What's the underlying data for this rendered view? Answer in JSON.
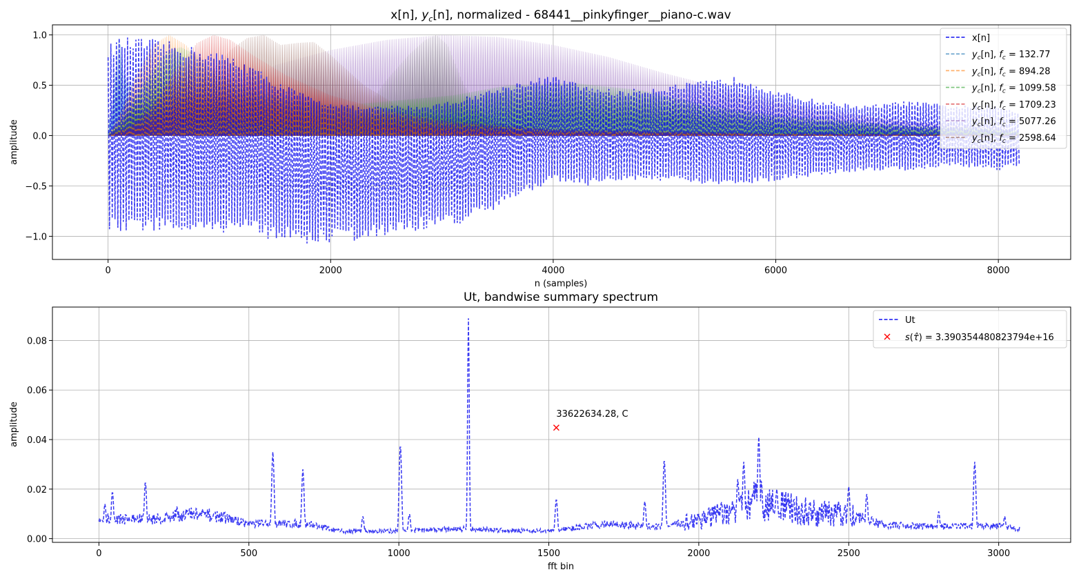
{
  "chart_data": [
    {
      "type": "line",
      "title_parts": [
        "x[n], ",
        "y",
        "c",
        "[n], normalized - 68441__pinkyfinger__piano-c.wav"
      ],
      "xlabel": "n (samples)",
      "ylabel": "amplitude",
      "xlim": [
        -500,
        8650
      ],
      "ylim": [
        -1.23,
        1.1
      ],
      "xticks": [
        0,
        2000,
        4000,
        6000,
        8000
      ],
      "xtick_labels": [
        "0",
        "2000",
        "4000",
        "6000",
        "8000"
      ],
      "yticks": [
        -1.0,
        -0.5,
        0.0,
        0.5,
        1.0
      ],
      "ytick_labels": [
        "−1.0",
        "−0.5",
        "0.0",
        "0.5",
        "1.0"
      ],
      "grid": true,
      "legend_position": "top-right",
      "n_samples": 8192,
      "series": [
        {
          "name": "x[n]",
          "kind": "signal",
          "color": "#0000ee",
          "style": "dashed",
          "envelope_n": [
            0,
            100,
            300,
            500,
            700,
            900,
            1100,
            1300,
            1500,
            1700,
            1900,
            2100,
            2300,
            2500,
            2800,
            3100,
            3400,
            3700,
            4000,
            4300,
            4600,
            5000,
            5400,
            5700,
            6000,
            6400,
            6800,
            7200,
            7600,
            8000,
            8190
          ],
          "envelope_upper": [
            0.9,
            0.98,
            0.97,
            0.95,
            0.9,
            0.85,
            0.8,
            0.7,
            0.55,
            0.45,
            0.35,
            0.32,
            0.28,
            0.3,
            0.3,
            0.35,
            0.45,
            0.55,
            0.6,
            0.5,
            0.45,
            0.5,
            0.55,
            0.6,
            0.45,
            0.35,
            0.3,
            0.35,
            0.3,
            0.3,
            0.25
          ],
          "envelope_lower": [
            -0.95,
            -0.98,
            -0.95,
            -0.95,
            -0.98,
            -1.0,
            -0.95,
            -0.98,
            -1.05,
            -1.07,
            -1.1,
            -1.05,
            -1.07,
            -1.0,
            -0.95,
            -0.9,
            -0.8,
            -0.6,
            -0.45,
            -0.5,
            -0.45,
            -0.45,
            -0.5,
            -0.5,
            -0.45,
            -0.4,
            -0.35,
            -0.35,
            -0.3,
            -0.35,
            -0.3
          ]
        },
        {
          "name_parts": [
            "y",
            "c",
            "[n], ",
            "f",
            "c",
            " = 132.77"
          ],
          "kind": "band",
          "color": "#1f77b4",
          "envelope_n": [
            0,
            50,
            100,
            150,
            300,
            600,
            1000,
            1500,
            2000,
            3000,
            4000,
            6000,
            8190
          ],
          "envelope": [
            0.05,
            0.5,
            1.0,
            0.6,
            0.35,
            0.25,
            0.2,
            0.15,
            0.12,
            0.1,
            0.07,
            0.04,
            0.02
          ]
        },
        {
          "name_parts": [
            "y",
            "c",
            "[n], ",
            "f",
            "c",
            " = 894.28"
          ],
          "kind": "band",
          "color": "#ff7f0e",
          "envelope_n": [
            0,
            100,
            250,
            400,
            550,
            700,
            900,
            1200,
            1500,
            2000,
            2500,
            3000,
            4000,
            6000,
            8190
          ],
          "envelope": [
            0.0,
            0.2,
            0.6,
            0.9,
            1.0,
            0.9,
            0.65,
            0.45,
            0.3,
            0.15,
            0.08,
            0.05,
            0.03,
            0.02,
            0.01
          ]
        },
        {
          "name_parts": [
            "y",
            "c",
            "[n], ",
            "f",
            "c",
            " = 1099.58"
          ],
          "kind": "band",
          "color": "#2ca02c",
          "envelope_n": [
            0,
            150,
            300,
            500,
            650,
            800,
            1000,
            1300,
            1700,
            2100,
            2600,
            3100,
            3600,
            4200,
            4800,
            5400,
            6000,
            6600,
            7200,
            7800,
            8190
          ],
          "envelope": [
            0.0,
            0.2,
            0.5,
            0.8,
            0.88,
            0.8,
            0.6,
            0.45,
            0.35,
            0.3,
            0.35,
            0.4,
            0.5,
            0.52,
            0.45,
            0.3,
            0.2,
            0.15,
            0.1,
            0.08,
            0.05
          ]
        },
        {
          "name_parts": [
            "y",
            "c",
            "[n], ",
            "f",
            "c",
            " = 1709.23"
          ],
          "kind": "band",
          "color": "#d62728",
          "envelope_n": [
            0,
            200,
            400,
            600,
            800,
            950,
            1100,
            1300,
            1600,
            2000,
            2500,
            3000,
            3500,
            4000,
            5000,
            6000,
            8190
          ],
          "envelope": [
            0.0,
            0.1,
            0.3,
            0.65,
            0.92,
            1.0,
            0.95,
            0.8,
            0.6,
            0.4,
            0.25,
            0.15,
            0.1,
            0.06,
            0.04,
            0.02,
            0.01
          ]
        },
        {
          "name_parts": [
            "y",
            "c",
            "[n], ",
            "f",
            "c",
            " = 5077.26"
          ],
          "kind": "band",
          "color": "#9467bd",
          "envelope_n": [
            0,
            500,
            1000,
            1500,
            2000,
            2500,
            3000,
            3500,
            4000,
            4500,
            5000,
            5500,
            6000,
            6500,
            7000,
            7500,
            8000,
            8190
          ],
          "envelope": [
            0.05,
            0.15,
            0.35,
            0.7,
            0.85,
            0.95,
            1.0,
            0.98,
            0.9,
            0.78,
            0.62,
            0.48,
            0.35,
            0.25,
            0.17,
            0.12,
            0.08,
            0.05
          ]
        },
        {
          "name_parts": [
            "y",
            "c",
            "[n], ",
            "f",
            "c",
            " = 2598.64"
          ],
          "kind": "band",
          "color": "#8c564b",
          "envelope_n": [
            0,
            300,
            600,
            900,
            1100,
            1250,
            1400,
            1550,
            1700,
            1850,
            2000,
            2300,
            2600,
            3000,
            3500,
            4000,
            5000,
            6000,
            8190
          ],
          "envelope": [
            0.0,
            0.1,
            0.3,
            0.6,
            0.85,
            0.97,
            1.0,
            0.9,
            0.92,
            0.93,
            0.8,
            0.5,
            0.3,
            0.2,
            0.12,
            0.08,
            0.05,
            0.03,
            0.02
          ]
        },
        {
          "name": "",
          "kind": "band",
          "color": "#7f7f7f",
          "envelope_n": [
            2000,
            2300,
            2500,
            2700,
            2850,
            2950,
            3050,
            3200,
            3400,
            3700
          ],
          "envelope": [
            0.05,
            0.25,
            0.55,
            0.8,
            0.95,
            1.0,
            0.9,
            0.5,
            0.2,
            0.05
          ]
        }
      ]
    },
    {
      "type": "line",
      "title": "Ut, bandwise summary spectrum",
      "xlabel": "fft bin",
      "ylabel": "amplitude",
      "xlim": [
        -155,
        3240
      ],
      "ylim": [
        -0.0015,
        0.0935
      ],
      "xticks": [
        0,
        500,
        1000,
        1500,
        2000,
        2500,
        3000
      ],
      "xtick_labels": [
        "0",
        "500",
        "1000",
        "1500",
        "2000",
        "2500",
        "3000"
      ],
      "yticks": [
        0.0,
        0.02,
        0.04,
        0.06,
        0.08
      ],
      "ytick_labels": [
        "0.00",
        "0.02",
        "0.04",
        "0.06",
        "0.08"
      ],
      "grid": true,
      "legend_position": "top-right",
      "series": [
        {
          "name": "Ut",
          "color": "#0000ee",
          "style": "dashed",
          "n_bins": 3072,
          "baseline": [
            [
              0,
              0.008
            ],
            [
              200,
              0.008
            ],
            [
              300,
              0.01
            ],
            [
              400,
              0.009
            ],
            [
              500,
              0.006
            ],
            [
              700,
              0.006
            ],
            [
              800,
              0.003
            ],
            [
              1000,
              0.003
            ],
            [
              1200,
              0.004
            ],
            [
              1500,
              0.003
            ],
            [
              1700,
              0.006
            ],
            [
              1800,
              0.005
            ],
            [
              1900,
              0.005
            ],
            [
              2000,
              0.008
            ],
            [
              2100,
              0.01
            ],
            [
              2200,
              0.016
            ],
            [
              2300,
              0.012
            ],
            [
              2400,
              0.01
            ],
            [
              2500,
              0.01
            ],
            [
              2600,
              0.006
            ],
            [
              2700,
              0.005
            ],
            [
              2800,
              0.005
            ],
            [
              3000,
              0.005
            ],
            [
              3071,
              0.004
            ]
          ],
          "peaks": [
            [
              20,
              0.014
            ],
            [
              45,
              0.019
            ],
            [
              155,
              0.023
            ],
            [
              260,
              0.013
            ],
            [
              580,
              0.035
            ],
            [
              680,
              0.028
            ],
            [
              880,
              0.009
            ],
            [
              1005,
              0.038
            ],
            [
              1035,
              0.01
            ],
            [
              1232,
              0.089
            ],
            [
              1525,
              0.016
            ],
            [
              1820,
              0.015
            ],
            [
              1885,
              0.032
            ],
            [
              2130,
              0.024
            ],
            [
              2150,
              0.031
            ],
            [
              2200,
              0.041
            ],
            [
              2260,
              0.02
            ],
            [
              2500,
              0.021
            ],
            [
              2560,
              0.018
            ],
            [
              2800,
              0.011
            ],
            [
              2920,
              0.031
            ],
            [
              3020,
              0.009
            ]
          ]
        }
      ],
      "marker": {
        "x": 1525,
        "y": 0.0448,
        "color": "#ff0000",
        "label": "33622634.28, C",
        "legend_parts": [
          "s",
          "(",
          "τ̂",
          ") = 3.390354480823794e+16"
        ]
      }
    }
  ]
}
